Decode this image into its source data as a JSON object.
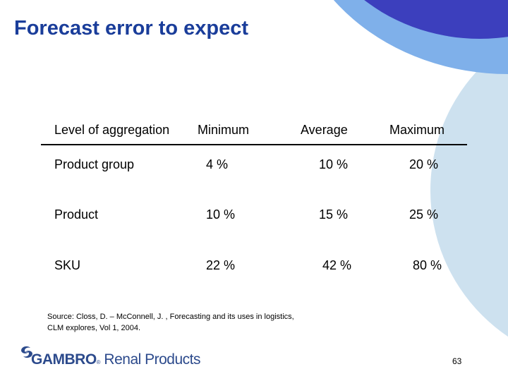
{
  "slide": {
    "title": "Forecast error to expect",
    "page_number": "63"
  },
  "table": {
    "headers": [
      "Level of aggregation",
      "Minimum",
      "Average",
      "Maximum"
    ],
    "rows": [
      [
        "Product group",
        "4 %",
        "10 %",
        "20 %"
      ],
      [
        "Product",
        "10 %",
        "15 %",
        "25 %"
      ],
      [
        "SKU",
        "22 %",
        "42 %",
        "80 %"
      ]
    ]
  },
  "source": {
    "line1": "Source: Closs, D. – McConnell, J.  , Forecasting and its uses in logistics,",
    "line2": "CLM explores, Vol 1, 2004."
  },
  "logo": {
    "brand": "GAMBRO",
    "registered": "®",
    "rest": "Renal Products",
    "icon": "gambro-swirl-icon"
  },
  "colors": {
    "title": "#1a3d9a",
    "dark_blue": "#3c3fbd",
    "mid_blue": "#7fb0ea",
    "light_blue": "#cde1ef"
  }
}
